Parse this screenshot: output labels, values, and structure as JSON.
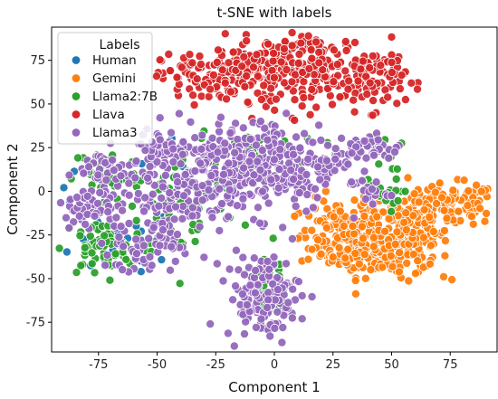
{
  "chart_data": {
    "type": "scatter",
    "title": "t-SNE with labels",
    "xlabel": "Component 1",
    "ylabel": "Component 2",
    "xlim": [
      -95,
      95
    ],
    "ylim": [
      -92,
      94
    ],
    "xticks": [
      -75,
      -50,
      -25,
      0,
      25,
      50,
      75
    ],
    "yticks": [
      -75,
      -50,
      -25,
      0,
      25,
      50,
      75
    ],
    "grid": false,
    "legend": {
      "title": "Labels",
      "placement": "top-left"
    },
    "series": [
      {
        "name": "Human",
        "color": "#1f77b4",
        "clusters": [
          {
            "cx": -72,
            "cy": -30,
            "sx": 8,
            "sy": 9,
            "n": 14
          },
          {
            "cx": -55,
            "cy": -25,
            "sx": 6,
            "sy": 8,
            "n": 8
          },
          {
            "cx": -40,
            "cy": 10,
            "sx": 10,
            "sy": 10,
            "n": 6
          },
          {
            "cx": -80,
            "cy": 5,
            "sx": 6,
            "sy": 8,
            "n": 6
          }
        ]
      },
      {
        "name": "Gemini",
        "color": "#ff7f0e",
        "clusters": [
          {
            "cx": 27,
            "cy": -25,
            "sx": 8,
            "sy": 10,
            "n": 110
          },
          {
            "cx": 45,
            "cy": -35,
            "sx": 10,
            "sy": 7,
            "n": 130
          },
          {
            "cx": 60,
            "cy": -25,
            "sx": 7,
            "sy": 10,
            "n": 110
          },
          {
            "cx": 75,
            "cy": -8,
            "sx": 10,
            "sy": 6,
            "n": 110
          },
          {
            "cx": 42,
            "cy": -12,
            "sx": 6,
            "sy": 6,
            "n": 40
          }
        ]
      },
      {
        "name": "Llama2:7B",
        "color": "#2ca02c",
        "clusters": [
          {
            "cx": -75,
            "cy": -33,
            "sx": 8,
            "sy": 8,
            "n": 60
          },
          {
            "cx": -72,
            "cy": 10,
            "sx": 7,
            "sy": 8,
            "n": 40
          },
          {
            "cx": -38,
            "cy": -10,
            "sx": 12,
            "sy": 15,
            "n": 50
          },
          {
            "cx": -10,
            "cy": 20,
            "sx": 15,
            "sy": 10,
            "n": 50
          },
          {
            "cx": -5,
            "cy": -55,
            "sx": 7,
            "sy": 12,
            "n": 25
          },
          {
            "cx": 44,
            "cy": -2,
            "sx": 5,
            "sy": 5,
            "n": 22
          },
          {
            "cx": 45,
            "cy": 22,
            "sx": 5,
            "sy": 5,
            "n": 10
          }
        ]
      },
      {
        "name": "Llava",
        "color": "#d62728",
        "clusters": [
          {
            "cx": -30,
            "cy": 65,
            "sx": 9,
            "sy": 7,
            "n": 90
          },
          {
            "cx": -5,
            "cy": 70,
            "sx": 10,
            "sy": 9,
            "n": 140
          },
          {
            "cx": 20,
            "cy": 70,
            "sx": 9,
            "sy": 10,
            "n": 120
          },
          {
            "cx": 42,
            "cy": 65,
            "sx": 7,
            "sy": 9,
            "n": 100
          }
        ]
      },
      {
        "name": "Llama3",
        "color": "#9467bd",
        "clusters": [
          {
            "cx": -77,
            "cy": -10,
            "sx": 9,
            "sy": 8,
            "n": 70
          },
          {
            "cx": -72,
            "cy": 12,
            "sx": 7,
            "sy": 6,
            "n": 40
          },
          {
            "cx": -60,
            "cy": -35,
            "sx": 5,
            "sy": 8,
            "n": 30
          },
          {
            "cx": -45,
            "cy": -5,
            "sx": 8,
            "sy": 18,
            "n": 90
          },
          {
            "cx": -25,
            "cy": 10,
            "sx": 12,
            "sy": 14,
            "n": 170
          },
          {
            "cx": 0,
            "cy": 15,
            "sx": 12,
            "sy": 14,
            "n": 170
          },
          {
            "cx": -45,
            "cy": 25,
            "sx": 8,
            "sy": 5,
            "n": 40
          },
          {
            "cx": 22,
            "cy": 18,
            "sx": 6,
            "sy": 8,
            "n": 40
          },
          {
            "cx": -5,
            "cy": -60,
            "sx": 8,
            "sy": 12,
            "n": 130
          },
          {
            "cx": 40,
            "cy": 25,
            "sx": 7,
            "sy": 4,
            "n": 40
          },
          {
            "cx": 40,
            "cy": 0,
            "sx": 4,
            "sy": 4,
            "n": 20
          }
        ]
      }
    ]
  }
}
